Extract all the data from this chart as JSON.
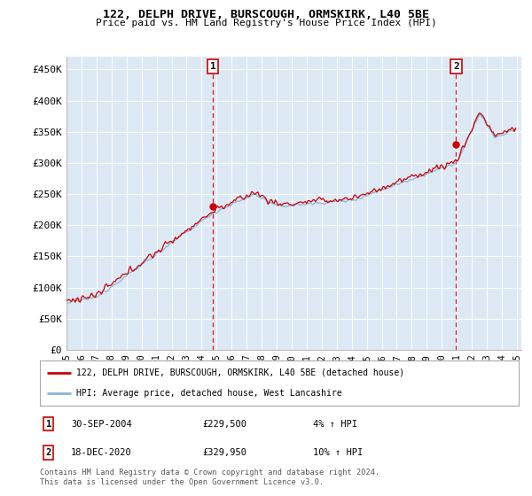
{
  "title": "122, DELPH DRIVE, BURSCOUGH, ORMSKIRK, L40 5BE",
  "subtitle": "Price paid vs. HM Land Registry's House Price Index (HPI)",
  "ylabel_ticks": [
    "£0",
    "£50K",
    "£100K",
    "£150K",
    "£200K",
    "£250K",
    "£300K",
    "£350K",
    "£400K",
    "£450K"
  ],
  "ylim": [
    0,
    470000
  ],
  "yticks": [
    0,
    50000,
    100000,
    150000,
    200000,
    250000,
    300000,
    350000,
    400000,
    450000
  ],
  "x_start_year": 1995,
  "x_end_year": 2025,
  "bg_color": "#dce9f5",
  "grid_color": "#ffffff",
  "red_line_color": "#cc0000",
  "blue_line_color": "#8ab4d4",
  "sale1_year": 2004.75,
  "sale1_price": 229500,
  "sale2_year": 2020.958,
  "sale2_price": 329950,
  "annotation1": {
    "label": "1",
    "date": "30-SEP-2004",
    "price": 229500,
    "hpi_diff": "4% ↑ HPI"
  },
  "annotation2": {
    "label": "2",
    "date": "18-DEC-2020",
    "price": 329950,
    "hpi_diff": "10% ↑ HPI"
  },
  "legend_red": "122, DELPH DRIVE, BURSCOUGH, ORMSKIRK, L40 5BE (detached house)",
  "legend_blue": "HPI: Average price, detached house, West Lancashire",
  "footer": "Contains HM Land Registry data © Crown copyright and database right 2024.\nThis data is licensed under the Open Government Licence v3.0."
}
